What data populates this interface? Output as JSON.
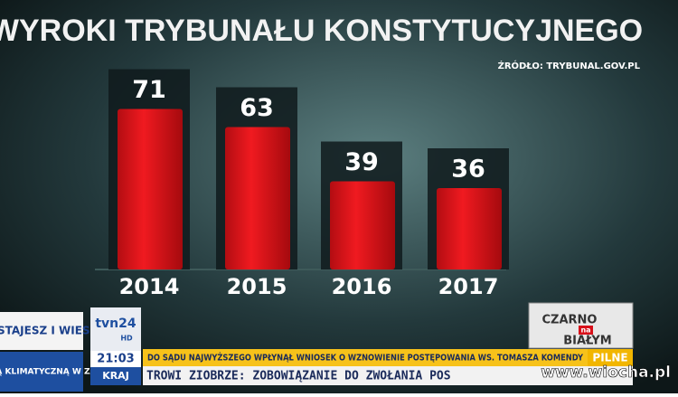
{
  "chart_data": {
    "type": "bar",
    "title": "WYROKI TRYBUNAŁU KONSTYTUCYJNEGO",
    "subtitle": "ŹRÓDŁO: TRYBUNAL.GOV.PL",
    "categories": [
      "2014",
      "2015",
      "2016",
      "2017"
    ],
    "values": [
      71,
      63,
      39,
      36
    ],
    "color": "#e8141b"
  },
  "overlay": {
    "side_top": "WSTAJESZ I WIESZ",
    "side_bottom": "CO Z OPŁATĄ KLIMATYCZNĄ W ZAKOPANEM",
    "logo": "tvn24",
    "logo_hd": "HD",
    "time": "21:03",
    "section": "KRAJ",
    "ticker_urgent": "DO SĄDU NAJWYŻSZEGO WPŁYNĄŁ WNIOSEK O WZNOWIENIE POSTĘPOWANIA WS. TOMASZA KOMENDY",
    "urgent": "PILNE",
    "ticker": "TROWI ZIOBRZE: ZOBOWIĄZANIE DO ZWOŁANIA POS",
    "show_top": "CZARNO",
    "show_mid": "na",
    "show_bottom": "BIAŁYM",
    "watermark": "www.wiocha.pl"
  }
}
